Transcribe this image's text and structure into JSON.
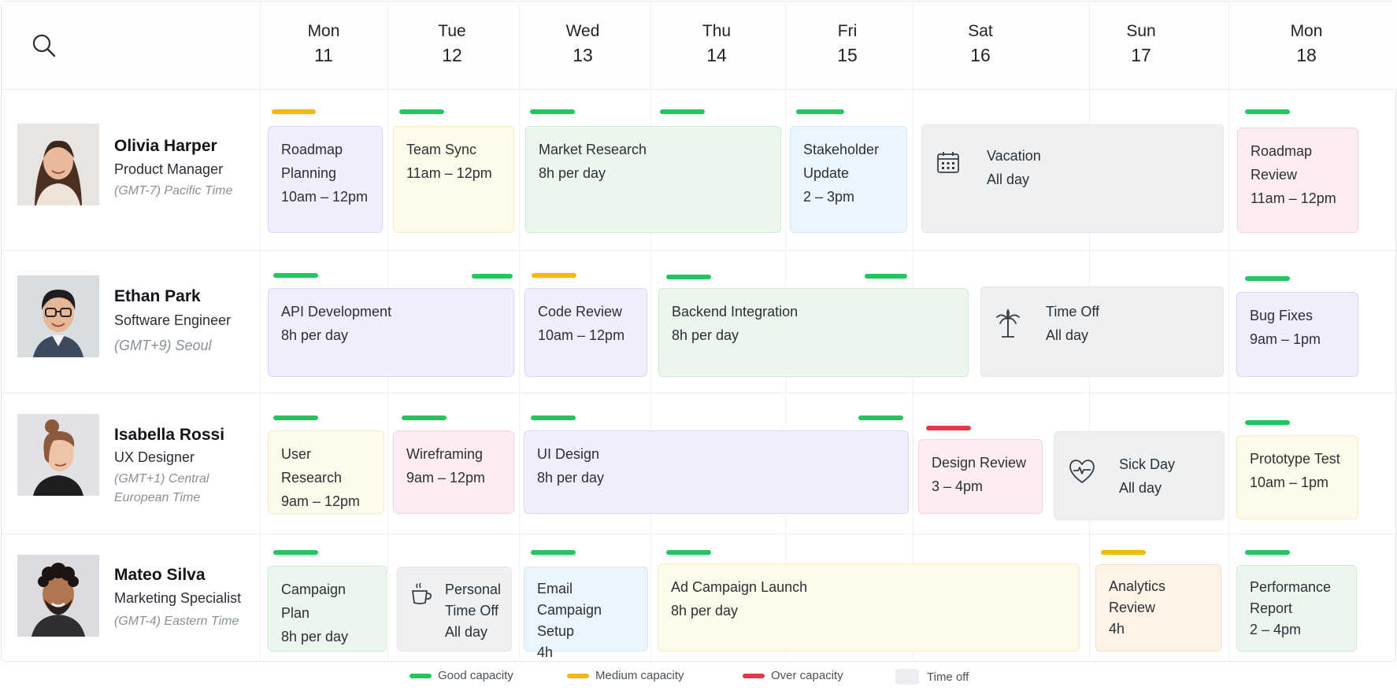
{
  "days": [
    {
      "name": "Mon",
      "num": "11"
    },
    {
      "name": "Tue",
      "num": "12"
    },
    {
      "name": "Wed",
      "num": "13"
    },
    {
      "name": "Thu",
      "num": "14"
    },
    {
      "name": "Fri",
      "num": "15"
    },
    {
      "name": "Sat",
      "num": "16"
    },
    {
      "name": "Sun",
      "num": "17"
    },
    {
      "name": "Mon",
      "num": "18"
    }
  ],
  "people": [
    {
      "name": "Olivia Harper",
      "role": "Product Manager",
      "timezone": "(GMT-7) Pacific Time"
    },
    {
      "name": "Ethan Park",
      "role": "Software Engineer",
      "timezone": "(GMT+9) Seoul"
    },
    {
      "name": "Isabella Rossi",
      "role": "UX Designer",
      "timezone": "(GMT+1) Central European Time"
    },
    {
      "name": "Mateo Silva",
      "role": "Marketing Specialist",
      "timezone": "(GMT-4) Eastern Time"
    }
  ],
  "rows": [
    {
      "events": [
        {
          "title": "Roadmap Planning",
          "sub": "10am – 12pm"
        },
        {
          "title": "Team Sync",
          "sub": "11am – 12pm"
        },
        {
          "title": "Market Research",
          "sub": "8h per day"
        },
        {
          "title": "Stakeholder Update",
          "sub": "2 – 3pm"
        },
        {
          "title": "Vacation",
          "sub": "All day",
          "icon": "calendar-icon"
        },
        {
          "title": "Roadmap Review",
          "sub": "11am – 12pm"
        }
      ]
    },
    {
      "events": [
        {
          "title": "API Development",
          "sub": "8h per day"
        },
        {
          "title": "Code Review",
          "sub": "10am – 12pm"
        },
        {
          "title": "Backend Integration",
          "sub": "8h per day"
        },
        {
          "title": "Time Off",
          "sub": "All day",
          "icon": "palm-tree-icon"
        },
        {
          "title": "Bug Fixes",
          "sub": "9am – 1pm"
        }
      ]
    },
    {
      "events": [
        {
          "title": "User Research",
          "sub": "9am – 12pm"
        },
        {
          "title": "Wireframing",
          "sub": "9am – 12pm"
        },
        {
          "title": "UI Design",
          "sub": "8h per day"
        },
        {
          "title": "Design Review",
          "sub": "3 – 4pm"
        },
        {
          "title": "Sick Day",
          "sub": "All day",
          "icon": "heart-pulse-icon"
        },
        {
          "title": "Prototype Test",
          "sub": "10am – 1pm"
        }
      ]
    },
    {
      "events": [
        {
          "title": "Campaign Plan",
          "sub": "8h per day"
        },
        {
          "title": "Personal Time Off",
          "sub": "All day",
          "icon": "coffee-cup-icon"
        },
        {
          "title": "Email Campaign Setup",
          "sub": "4h"
        },
        {
          "title": "Ad Campaign Launch",
          "sub": "8h per day"
        },
        {
          "title": "Analytics Review",
          "sub": "4h"
        },
        {
          "title": "Performance Report",
          "sub": "2 – 4pm"
        }
      ]
    }
  ],
  "legend": {
    "good": "Good capacity",
    "medium": "Medium capacity",
    "over": "Over capacity",
    "timeoff": "Time off"
  },
  "colors": {
    "good": "#22c55e",
    "medium": "#f2b90c",
    "over": "#e5394a",
    "time_off": "#eceef1"
  },
  "icons": {
    "search": "search-icon"
  }
}
